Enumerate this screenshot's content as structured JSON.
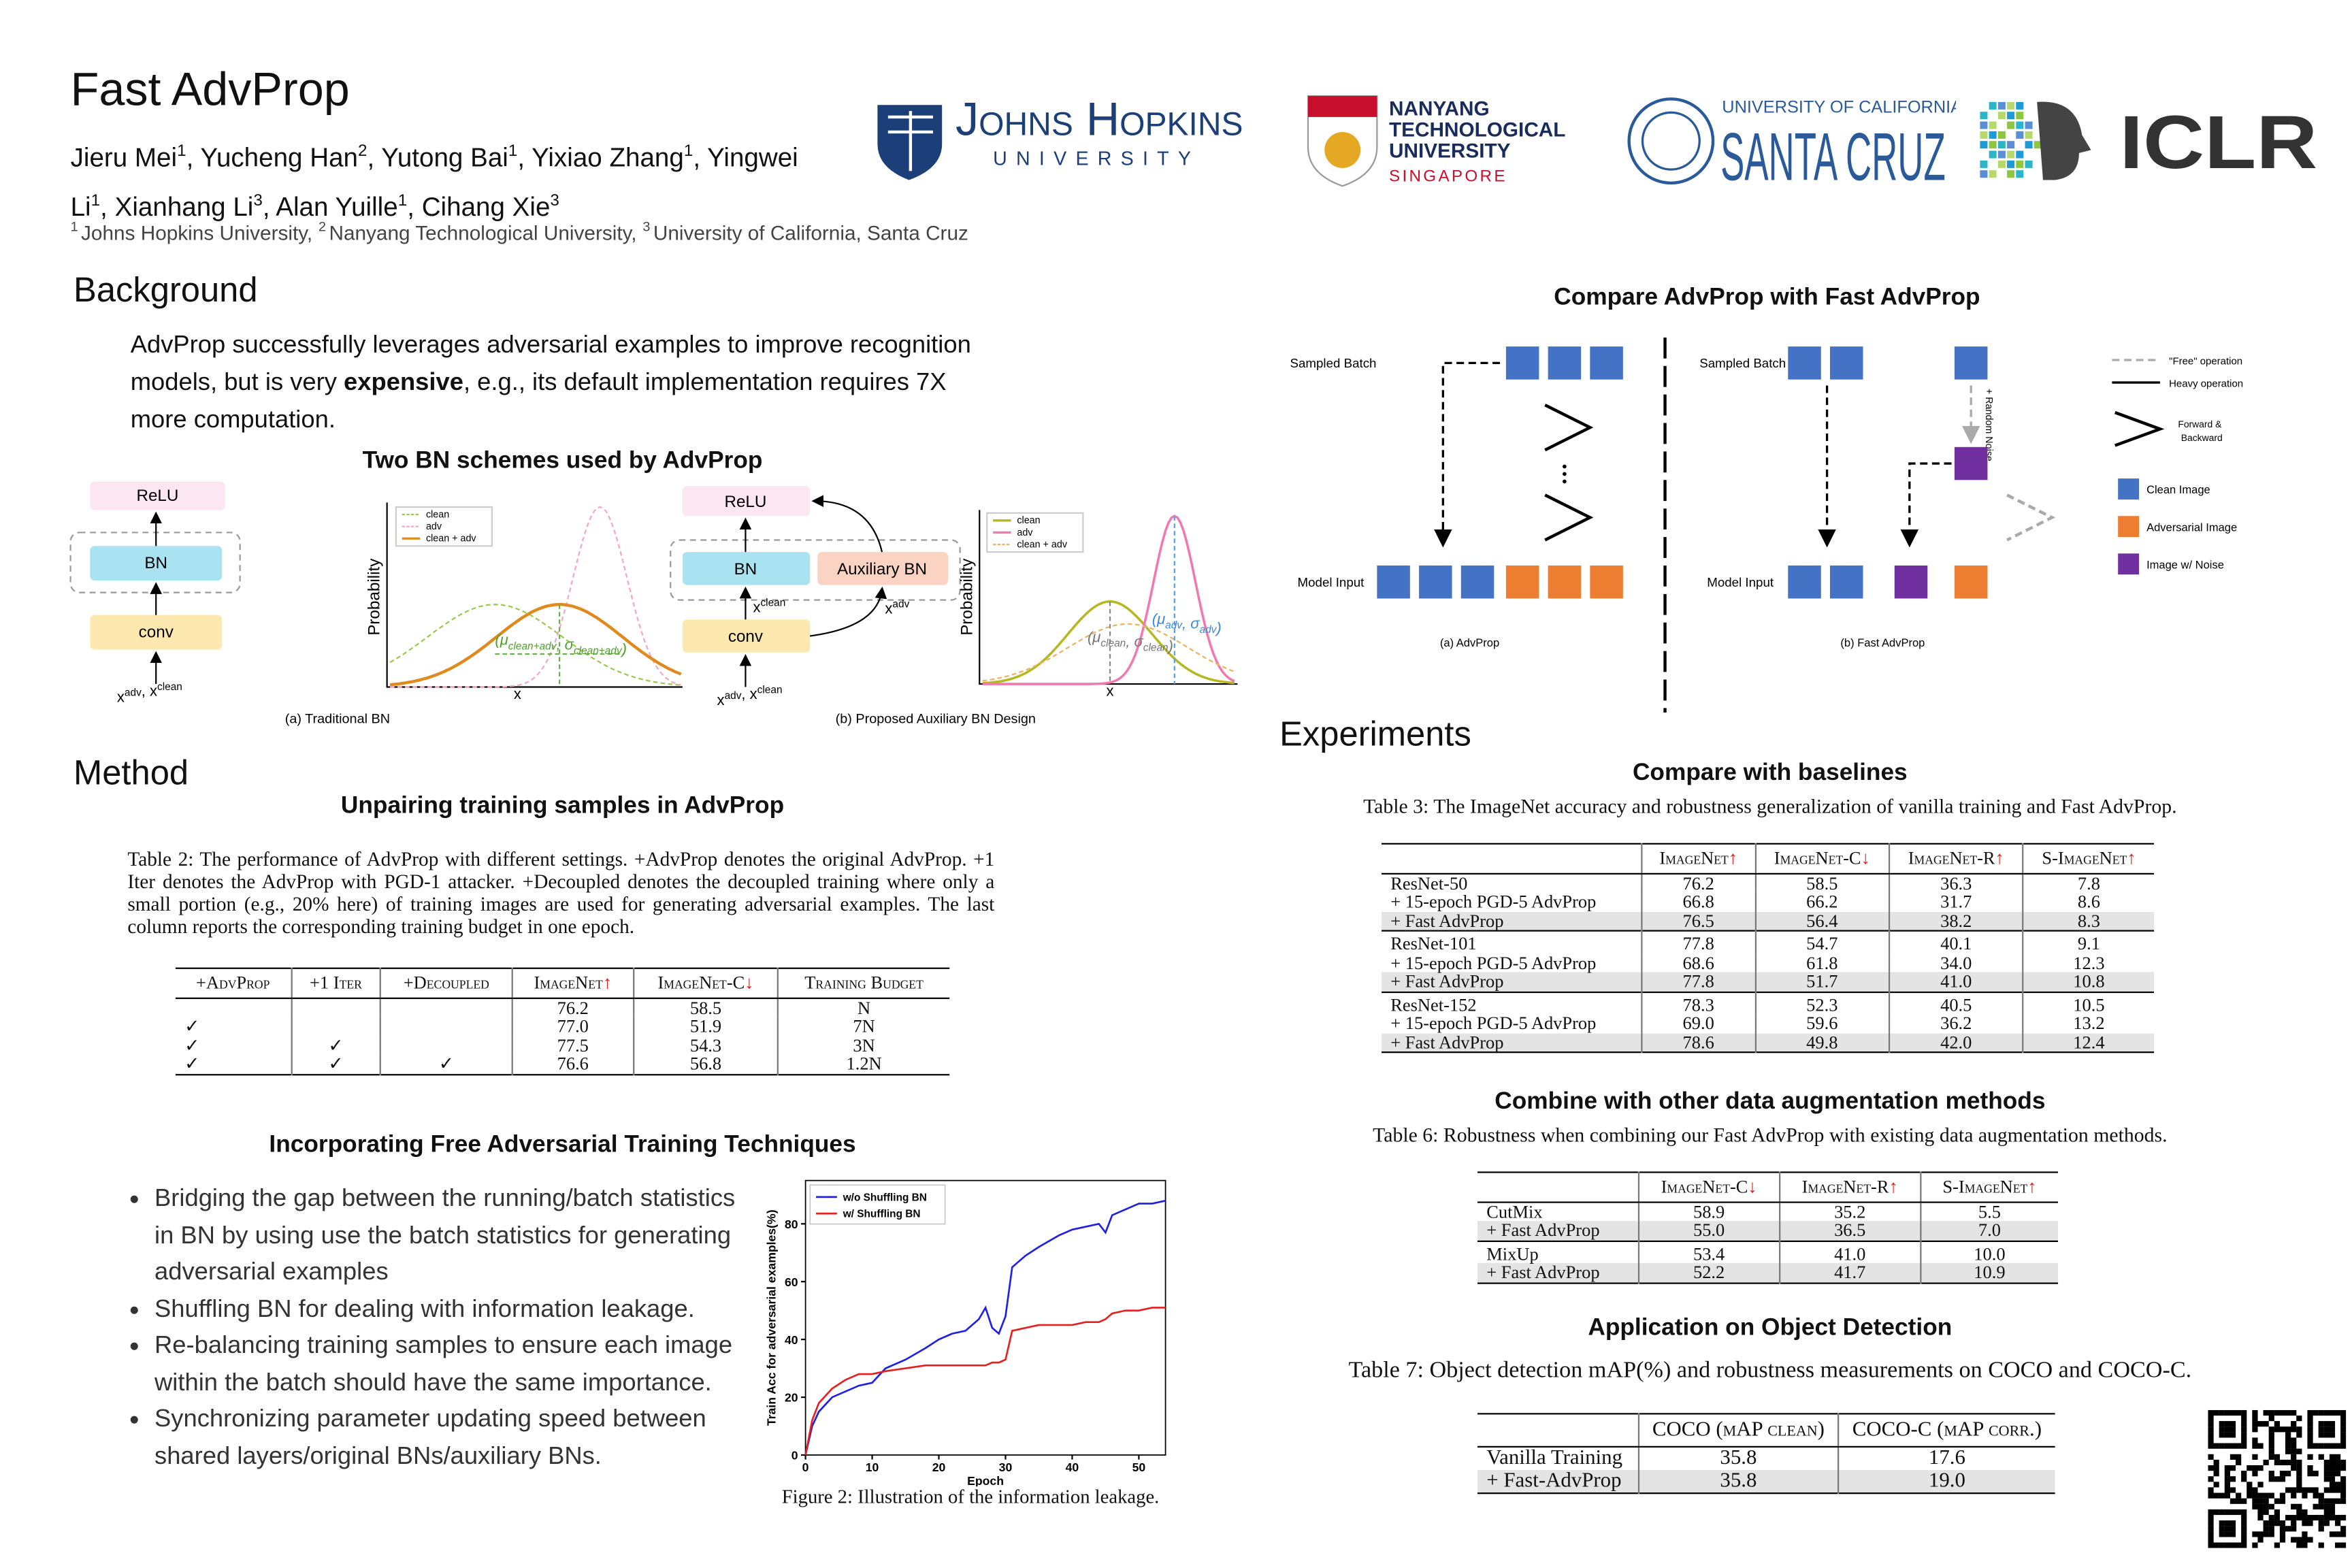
{
  "header": {
    "title": "Fast AdvProp",
    "authors": [
      {
        "name": "Jieru Mei",
        "aff": "1",
        "sep": ","
      },
      {
        "name": "Yucheng Han",
        "aff": "2",
        "sep": ","
      },
      {
        "name": "Yutong Bai",
        "aff": "1",
        "sep": ","
      },
      {
        "name": "Yixiao Zhang",
        "aff": "1",
        "sep": ","
      },
      {
        "name": "Yingwei Li",
        "aff": "1",
        "sep": ","
      },
      {
        "name": "Xianhang Li",
        "aff": "3",
        "sep": ","
      },
      {
        "name": "Alan Yuille",
        "aff": "1",
        "sep": ","
      },
      {
        "name": "Cihang Xie",
        "aff": "3",
        "sep": null
      }
    ],
    "affiliations": [
      {
        "num": "1",
        "name": "Johns Hopkins University,"
      },
      {
        "num": "2",
        "name": "Nanyang Technological University,"
      },
      {
        "num": "3",
        "name": "University of California, Santa Cruz"
      }
    ],
    "logos": {
      "jhu": [
        "Johns Hopkins",
        "UNIVERSITY"
      ],
      "ntu": [
        "NANYANG",
        "TECHNOLOGICAL",
        "UNIVERSITY",
        "SINGAPORE"
      ],
      "ucsc": [
        "UNIVERSITY OF CALIFORNIA",
        "SANTA CRUZ"
      ],
      "iclr": "ICLR"
    }
  },
  "background": {
    "heading": "Background",
    "text_before": "AdvProp successfully leverages adversarial examples to improve recognition models, but is very ",
    "emphasis": "expensive",
    "text_after": ", e.g., its default implementation requires 7X more computation."
  },
  "bn_figure": {
    "title": "Two BN schemes used by AdvProp",
    "relu": "ReLU",
    "bn": "BN",
    "conv": "conv",
    "aux_bn": "Auxiliary BN",
    "input": [
      {
        "base": "x",
        "sup": "adv",
        "sep": ","
      },
      {
        "base": "x",
        "sup": "clean",
        "sep": null
      }
    ],
    "x_clean": {
      "base": "x",
      "sup": "clean"
    },
    "x_adv": {
      "base": "x",
      "sup": "adv"
    },
    "y_label": "Probability",
    "x_label": "x",
    "legend": [
      "clean",
      "adv",
      "clean + adv"
    ],
    "annot_a": [
      [
        "(μ",
        "clean+adv"
      ],
      [
        ", σ",
        "clean+adv"
      ],
      [
        ")",
        null
      ]
    ],
    "annot_b1": [
      [
        "(μ",
        "clean"
      ],
      [
        ", σ",
        "clean"
      ],
      [
        ")",
        null
      ]
    ],
    "annot_b2": [
      [
        "(μ",
        "adv"
      ],
      [
        ", σ",
        "adv"
      ],
      [
        ")",
        null
      ]
    ],
    "caption_a": "(a) Traditional BN",
    "caption_b": "(b) Proposed Auxiliary BN Design"
  },
  "method": {
    "heading": "Method",
    "sub1": "Unpairing training samples in AdvProp",
    "table2": {
      "caption": "Table 2: The performance of AdvProp with different settings. +AdvProp denotes the original AdvProp. +1 Iter denotes the AdvProp with PGD-1 attacker. +Decoupled denotes the decoupled training where only a small portion (e.g., 20% here) of training images are used for generating adversarial examples. The last column reports the corresponding training budget in one epoch.",
      "header": [
        "+AdvProp",
        "+1 Iter",
        "+Decoupled",
        {
          "text": "ImageNet",
          "arrow": "↑"
        },
        {
          "text": "ImageNet-C",
          "arrow": "↓"
        },
        "Training Budget"
      ],
      "groups": [
        [
          [
            null,
            null,
            null,
            "76.2",
            "58.5",
            "N"
          ],
          [
            "✓",
            null,
            null,
            "77.0",
            "51.9",
            "7N"
          ],
          [
            "✓",
            "✓",
            null,
            "77.5",
            "54.3",
            "3N"
          ],
          [
            "✓",
            "✓",
            "✓",
            "76.6",
            "56.8",
            "1.2N"
          ]
        ]
      ]
    },
    "sub2": "Incorporating Free Adversarial Training Techniques",
    "bullets": [
      "Bridging the gap between the running/batch statistics in BN by using use the batch statistics for generating adversarial examples",
      "Shuffling BN for dealing with information leakage.",
      "Re-balancing training samples to ensure each image within the batch should have the same importance.",
      "Synchronizing parameter updating speed between shared layers/original BNs/auxiliary BNs."
    ],
    "figure2": {
      "type": "line",
      "x_label": "Epoch",
      "y_label": "Train Acc for adversarial examples(%)",
      "x": [
        0,
        1,
        2,
        4,
        6,
        8,
        10,
        12,
        15,
        18,
        20,
        22,
        24,
        26,
        27,
        28,
        29,
        30,
        31,
        33,
        35,
        38,
        40,
        42,
        44,
        45,
        46,
        48,
        50,
        52,
        54
      ],
      "series": [
        {
          "name": "w/o Shuffling BN",
          "color": "#1f1fe6",
          "values": [
            0,
            10,
            15,
            20,
            22,
            24,
            25,
            30,
            33,
            37,
            40,
            42,
            43,
            47,
            51,
            44,
            42,
            48,
            65,
            69,
            72,
            76,
            78,
            79,
            80,
            77,
            83,
            85,
            87,
            87,
            88
          ]
        },
        {
          "name": "w/ Shuffling BN",
          "color": "#e61f1f",
          "values": [
            0,
            12,
            18,
            23,
            26,
            28,
            28,
            29,
            30,
            31,
            31,
            31,
            31,
            31,
            31,
            32,
            32,
            33,
            43,
            44,
            45,
            45,
            45,
            46,
            46,
            47,
            49,
            50,
            50,
            51,
            51
          ]
        }
      ],
      "xlim": [
        0,
        54
      ],
      "ylim": [
        0,
        95
      ],
      "xticks": [
        0,
        10,
        20,
        30,
        40,
        50
      ],
      "yticks": [
        0,
        20,
        40,
        60,
        80
      ],
      "legend": "upper left",
      "caption": "Figure 2: Illustration of the information leakage."
    }
  },
  "comparison": {
    "title": "Compare AdvProp with Fast AdvProp",
    "sampled_batch": "Sampled Batch",
    "model_input": "Model Input",
    "random_noise": "+ Random Noise",
    "caption_a": "(a) AdvProp",
    "caption_b": "(b) Fast AdvProp",
    "legend": {
      "free": "\"Free\" operation",
      "heavy": "Heavy operation",
      "fwd": [
        "Forward &",
        "Backward"
      ],
      "clean": "Clean Image",
      "adv": "Adversarial Image",
      "noise": "Image w/ Noise"
    }
  },
  "experiments": {
    "heading": "Experiments",
    "sub1": "Compare with baselines",
    "table3": {
      "caption": "Table 3: The ImageNet accuracy and robustness generalization of vanilla training and Fast AdvProp.",
      "header": [
        null,
        {
          "text": "ImageNet",
          "arrow": "↑"
        },
        {
          "text": "ImageNet-C",
          "arrow": "↓"
        },
        {
          "text": "ImageNet-R",
          "arrow": "↑"
        },
        {
          "text": "S-ImageNet",
          "arrow": "↑"
        }
      ],
      "groups": [
        [
          [
            "ResNet-50",
            "76.2",
            "58.5",
            "36.3",
            "7.8"
          ],
          [
            "+ 15-epoch PGD-5 AdvProp",
            "66.8",
            "66.2",
            "31.7",
            "8.6"
          ],
          [
            "+ Fast AdvProp",
            "76.5",
            "56.4",
            "38.2",
            "8.3"
          ]
        ],
        [
          [
            "ResNet-101",
            "77.8",
            "54.7",
            "40.1",
            "9.1"
          ],
          [
            "+ 15-epoch PGD-5 AdvProp",
            "68.6",
            "61.8",
            "34.0",
            "12.3"
          ],
          [
            "+ Fast AdvProp",
            "77.8",
            "51.7",
            "41.0",
            "10.8"
          ]
        ],
        [
          [
            "ResNet-152",
            "78.3",
            "52.3",
            "40.5",
            "10.5"
          ],
          [
            "+ 15-epoch PGD-5 AdvProp",
            "69.0",
            "59.6",
            "36.2",
            "13.2"
          ],
          [
            "+ Fast AdvProp",
            "78.6",
            "49.8",
            "42.0",
            "12.4"
          ]
        ]
      ]
    },
    "sub2": "Combine with other data augmentation methods",
    "table6": {
      "caption": "Table 6: Robustness when combining our Fast AdvProp with existing data augmentation methods.",
      "header": [
        null,
        {
          "text": "ImageNet-C",
          "arrow": "↓"
        },
        {
          "text": "ImageNet-R",
          "arrow": "↑"
        },
        {
          "text": "S-ImageNet",
          "arrow": "↑"
        }
      ],
      "groups": [
        [
          [
            "CutMix",
            "58.9",
            "35.2",
            "5.5"
          ],
          [
            "+ Fast AdvProp",
            "55.0",
            "36.5",
            "7.0"
          ]
        ],
        [
          [
            "MixUp",
            "53.4",
            "41.0",
            "10.0"
          ],
          [
            "+ Fast AdvProp",
            "52.2",
            "41.7",
            "10.9"
          ]
        ]
      ]
    },
    "sub3": "Application on Object Detection",
    "table7": {
      "caption": "Table 7: Object detection mAP(%) and robustness measurements on COCO and COCO-C.",
      "header": [
        null,
        "COCO (mAP clean)",
        "COCO-C (mAP corr.)"
      ],
      "groups": [
        [
          [
            "Vanilla Training",
            "35.8",
            "17.6"
          ],
          [
            "+ Fast-AdvProp",
            "35.8",
            "19.0"
          ]
        ]
      ]
    }
  }
}
